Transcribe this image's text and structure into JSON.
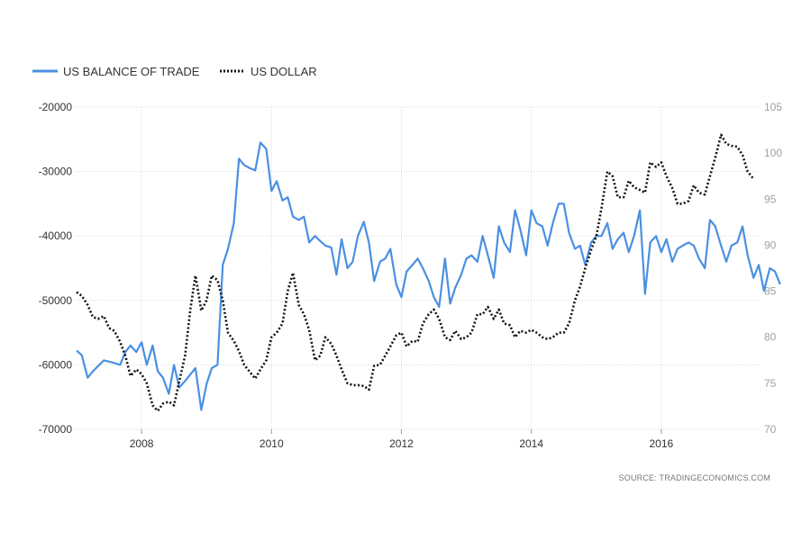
{
  "legend": {
    "items": [
      {
        "label": "US BALANCE OF TRADE",
        "color": "#4a90e2",
        "style": "solid"
      },
      {
        "label": "US DOLLAR",
        "color": "#111111",
        "style": "dotted"
      }
    ]
  },
  "source": "SOURCE: TRADINGECONOMICS.COM",
  "chart_data": {
    "type": "line",
    "title": "",
    "xlabel": "",
    "ylabel": "",
    "grid": true,
    "legend_position": "top-left",
    "x_range": [
      2007.0,
      2017.5
    ],
    "x_ticks": [
      {
        "value": 2008,
        "label": "2008"
      },
      {
        "value": 2010,
        "label": "2010"
      },
      {
        "value": 2012,
        "label": "2012"
      },
      {
        "value": 2014,
        "label": "2014"
      },
      {
        "value": 2016,
        "label": "2016"
      }
    ],
    "left_axis": {
      "range": [
        -70000,
        -20000
      ],
      "ticks": [
        {
          "value": -20000,
          "label": "-20000"
        },
        {
          "value": -30000,
          "label": "-30000"
        },
        {
          "value": -40000,
          "label": "-40000"
        },
        {
          "value": -50000,
          "label": "-50000"
        },
        {
          "value": -60000,
          "label": "-60000"
        },
        {
          "value": -70000,
          "label": "-70000"
        }
      ]
    },
    "right_axis": {
      "range": [
        70,
        105
      ],
      "ticks": [
        {
          "value": 105,
          "label": "105"
        },
        {
          "value": 100,
          "label": "100"
        },
        {
          "value": 95,
          "label": "95"
        },
        {
          "value": 90,
          "label": "90"
        },
        {
          "value": 85,
          "label": "85"
        },
        {
          "value": 80,
          "label": "80"
        },
        {
          "value": 75,
          "label": "75"
        },
        {
          "value": 70,
          "label": "70"
        }
      ]
    },
    "series": [
      {
        "name": "US BALANCE OF TRADE",
        "axis": "left",
        "color": "#4a90e2",
        "points": [
          [
            2007.0,
            -57800
          ],
          [
            2007.08,
            -58500
          ],
          [
            2007.17,
            -62000
          ],
          [
            2007.25,
            -61000
          ],
          [
            2007.33,
            -60200
          ],
          [
            2007.42,
            -59300
          ],
          [
            2007.5,
            -59500
          ],
          [
            2007.58,
            -59700
          ],
          [
            2007.67,
            -60000
          ],
          [
            2007.75,
            -58000
          ],
          [
            2007.83,
            -57000
          ],
          [
            2007.92,
            -58000
          ],
          [
            2008.0,
            -56500
          ],
          [
            2008.08,
            -60000
          ],
          [
            2008.17,
            -57000
          ],
          [
            2008.25,
            -61000
          ],
          [
            2008.33,
            -62000
          ],
          [
            2008.42,
            -64500
          ],
          [
            2008.5,
            -60000
          ],
          [
            2008.58,
            -63500
          ],
          [
            2008.67,
            -62500
          ],
          [
            2008.75,
            -61500
          ],
          [
            2008.83,
            -60500
          ],
          [
            2008.92,
            -67000
          ],
          [
            2009.0,
            -63000
          ],
          [
            2009.08,
            -60500
          ],
          [
            2009.17,
            -60000
          ],
          [
            2009.25,
            -44500
          ],
          [
            2009.33,
            -42000
          ],
          [
            2009.42,
            -38000
          ],
          [
            2009.5,
            -28000
          ],
          [
            2009.58,
            -29000
          ],
          [
            2009.67,
            -29500
          ],
          [
            2009.75,
            -29800
          ],
          [
            2009.83,
            -25500
          ],
          [
            2009.92,
            -26500
          ],
          [
            2010.0,
            -33000
          ],
          [
            2010.08,
            -31500
          ],
          [
            2010.17,
            -34500
          ],
          [
            2010.25,
            -34000
          ],
          [
            2010.33,
            -37000
          ],
          [
            2010.42,
            -37500
          ],
          [
            2010.5,
            -37000
          ],
          [
            2010.58,
            -41000
          ],
          [
            2010.67,
            -40000
          ],
          [
            2010.75,
            -40800
          ],
          [
            2010.83,
            -41500
          ],
          [
            2010.92,
            -41800
          ],
          [
            2011.0,
            -46000
          ],
          [
            2011.08,
            -40500
          ],
          [
            2011.17,
            -45000
          ],
          [
            2011.25,
            -44000
          ],
          [
            2011.33,
            -40000
          ],
          [
            2011.42,
            -37800
          ],
          [
            2011.5,
            -41000
          ],
          [
            2011.58,
            -47000
          ],
          [
            2011.67,
            -44000
          ],
          [
            2011.75,
            -43500
          ],
          [
            2011.83,
            -42000
          ],
          [
            2011.92,
            -47500
          ],
          [
            2012.0,
            -49500
          ],
          [
            2012.08,
            -45500
          ],
          [
            2012.17,
            -44500
          ],
          [
            2012.25,
            -43500
          ],
          [
            2012.33,
            -45000
          ],
          [
            2012.42,
            -47000
          ],
          [
            2012.5,
            -49500
          ],
          [
            2012.58,
            -51000
          ],
          [
            2012.67,
            -43500
          ],
          [
            2012.75,
            -50500
          ],
          [
            2012.83,
            -48000
          ],
          [
            2012.92,
            -46000
          ],
          [
            2013.0,
            -43500
          ],
          [
            2013.08,
            -43000
          ],
          [
            2013.17,
            -44000
          ],
          [
            2013.25,
            -40000
          ],
          [
            2013.33,
            -43000
          ],
          [
            2013.42,
            -46500
          ],
          [
            2013.5,
            -38500
          ],
          [
            2013.58,
            -41000
          ],
          [
            2013.67,
            -42500
          ],
          [
            2013.75,
            -36000
          ],
          [
            2013.83,
            -39000
          ],
          [
            2013.92,
            -43000
          ],
          [
            2014.0,
            -36000
          ],
          [
            2014.08,
            -38000
          ],
          [
            2014.17,
            -38500
          ],
          [
            2014.25,
            -41500
          ],
          [
            2014.33,
            -38000
          ],
          [
            2014.42,
            -35000
          ],
          [
            2014.5,
            -35000
          ],
          [
            2014.58,
            -39500
          ],
          [
            2014.67,
            -42000
          ],
          [
            2014.75,
            -41500
          ],
          [
            2014.83,
            -44500
          ],
          [
            2014.92,
            -41000
          ],
          [
            2015.0,
            -40000
          ],
          [
            2015.08,
            -40000
          ],
          [
            2015.17,
            -38000
          ],
          [
            2015.25,
            -42000
          ],
          [
            2015.33,
            -40500
          ],
          [
            2015.42,
            -39500
          ],
          [
            2015.5,
            -42500
          ],
          [
            2015.58,
            -40000
          ],
          [
            2015.67,
            -36000
          ],
          [
            2015.75,
            -49000
          ],
          [
            2015.83,
            -41000
          ],
          [
            2015.92,
            -40000
          ],
          [
            2016.0,
            -42500
          ],
          [
            2016.08,
            -40500
          ],
          [
            2016.17,
            -44000
          ],
          [
            2016.25,
            -42000
          ],
          [
            2016.33,
            -41500
          ],
          [
            2016.42,
            -41000
          ],
          [
            2016.5,
            -41500
          ],
          [
            2016.58,
            -43500
          ],
          [
            2016.67,
            -45000
          ],
          [
            2016.75,
            -37500
          ],
          [
            2016.83,
            -38500
          ],
          [
            2016.92,
            -41500
          ],
          [
            2017.0,
            -44000
          ],
          [
            2017.08,
            -41500
          ],
          [
            2017.17,
            -41000
          ],
          [
            2017.25,
            -38500
          ],
          [
            2017.33,
            -43000
          ],
          [
            2017.42,
            -46500
          ],
          [
            2017.5,
            -44500
          ],
          [
            2017.58,
            -48500
          ],
          [
            2017.67,
            -45000
          ],
          [
            2017.75,
            -45500
          ],
          [
            2017.83,
            -47500
          ]
        ]
      },
      {
        "name": "US DOLLAR",
        "axis": "right",
        "color": "#111111",
        "points": [
          [
            2007.0,
            84.9
          ],
          [
            2007.08,
            84.5
          ],
          [
            2007.17,
            83.5
          ],
          [
            2007.25,
            82.2
          ],
          [
            2007.33,
            82.0
          ],
          [
            2007.42,
            82.3
          ],
          [
            2007.5,
            81.0
          ],
          [
            2007.58,
            80.7
          ],
          [
            2007.67,
            79.5
          ],
          [
            2007.75,
            78.0
          ],
          [
            2007.83,
            75.8
          ],
          [
            2007.92,
            76.5
          ],
          [
            2008.0,
            76.0
          ],
          [
            2008.08,
            75.0
          ],
          [
            2008.17,
            72.6
          ],
          [
            2008.25,
            72.0
          ],
          [
            2008.33,
            72.8
          ],
          [
            2008.42,
            73.0
          ],
          [
            2008.5,
            72.6
          ],
          [
            2008.58,
            75.2
          ],
          [
            2008.67,
            78.0
          ],
          [
            2008.75,
            83.0
          ],
          [
            2008.83,
            86.7
          ],
          [
            2008.92,
            82.9
          ],
          [
            2009.0,
            84.0
          ],
          [
            2009.08,
            86.7
          ],
          [
            2009.17,
            86.2
          ],
          [
            2009.25,
            84.0
          ],
          [
            2009.33,
            80.5
          ],
          [
            2009.42,
            79.6
          ],
          [
            2009.5,
            78.5
          ],
          [
            2009.58,
            77.0
          ],
          [
            2009.67,
            76.2
          ],
          [
            2009.75,
            75.5
          ],
          [
            2009.83,
            76.5
          ],
          [
            2009.92,
            77.5
          ],
          [
            2010.0,
            80.0
          ],
          [
            2010.08,
            80.5
          ],
          [
            2010.17,
            81.5
          ],
          [
            2010.25,
            85.0
          ],
          [
            2010.33,
            87.0
          ],
          [
            2010.42,
            83.5
          ],
          [
            2010.5,
            82.5
          ],
          [
            2010.58,
            80.8
          ],
          [
            2010.67,
            77.5
          ],
          [
            2010.75,
            78.0
          ],
          [
            2010.83,
            80.0
          ],
          [
            2010.92,
            79.3
          ],
          [
            2011.0,
            78.0
          ],
          [
            2011.08,
            76.5
          ],
          [
            2011.17,
            75.0
          ],
          [
            2011.25,
            74.8
          ],
          [
            2011.33,
            74.8
          ],
          [
            2011.42,
            74.7
          ],
          [
            2011.5,
            74.3
          ],
          [
            2011.58,
            76.9
          ],
          [
            2011.67,
            77.0
          ],
          [
            2011.75,
            78.0
          ],
          [
            2011.83,
            79.0
          ],
          [
            2011.92,
            80.2
          ],
          [
            2012.0,
            80.5
          ],
          [
            2012.08,
            79.0
          ],
          [
            2012.17,
            79.6
          ],
          [
            2012.25,
            79.5
          ],
          [
            2012.33,
            81.5
          ],
          [
            2012.42,
            82.5
          ],
          [
            2012.5,
            83.0
          ],
          [
            2012.58,
            82.0
          ],
          [
            2012.67,
            80.0
          ],
          [
            2012.75,
            79.7
          ],
          [
            2012.83,
            80.7
          ],
          [
            2012.92,
            79.8
          ],
          [
            2013.0,
            80.0
          ],
          [
            2013.08,
            80.5
          ],
          [
            2013.17,
            82.5
          ],
          [
            2013.25,
            82.5
          ],
          [
            2013.33,
            83.3
          ],
          [
            2013.42,
            82.0
          ],
          [
            2013.5,
            83.0
          ],
          [
            2013.58,
            81.5
          ],
          [
            2013.67,
            81.3
          ],
          [
            2013.75,
            80.0
          ],
          [
            2013.83,
            80.7
          ],
          [
            2013.92,
            80.5
          ],
          [
            2014.0,
            80.8
          ],
          [
            2014.08,
            80.5
          ],
          [
            2014.17,
            80.0
          ],
          [
            2014.25,
            79.8
          ],
          [
            2014.33,
            80.0
          ],
          [
            2014.42,
            80.5
          ],
          [
            2014.5,
            80.5
          ],
          [
            2014.58,
            81.5
          ],
          [
            2014.67,
            84.0
          ],
          [
            2014.75,
            85.5
          ],
          [
            2014.83,
            87.5
          ],
          [
            2014.92,
            89.5
          ],
          [
            2015.0,
            91.0
          ],
          [
            2015.08,
            94.0
          ],
          [
            2015.17,
            98.0
          ],
          [
            2015.25,
            97.5
          ],
          [
            2015.33,
            95.2
          ],
          [
            2015.42,
            95.2
          ],
          [
            2015.5,
            97.0
          ],
          [
            2015.58,
            96.3
          ],
          [
            2015.67,
            96.0
          ],
          [
            2015.75,
            95.7
          ],
          [
            2015.83,
            99.0
          ],
          [
            2015.92,
            98.5
          ],
          [
            2016.0,
            99.0
          ],
          [
            2016.08,
            97.5
          ],
          [
            2016.17,
            96.2
          ],
          [
            2016.25,
            94.5
          ],
          [
            2016.33,
            94.5
          ],
          [
            2016.42,
            94.8
          ],
          [
            2016.5,
            96.5
          ],
          [
            2016.58,
            95.7
          ],
          [
            2016.67,
            95.5
          ],
          [
            2016.75,
            97.5
          ],
          [
            2016.83,
            99.5
          ],
          [
            2016.92,
            102.0
          ],
          [
            2017.0,
            101.0
          ],
          [
            2017.08,
            100.8
          ],
          [
            2017.17,
            100.7
          ],
          [
            2017.25,
            99.8
          ],
          [
            2017.33,
            98.0
          ],
          [
            2017.42,
            97.2
          ]
        ]
      }
    ]
  }
}
